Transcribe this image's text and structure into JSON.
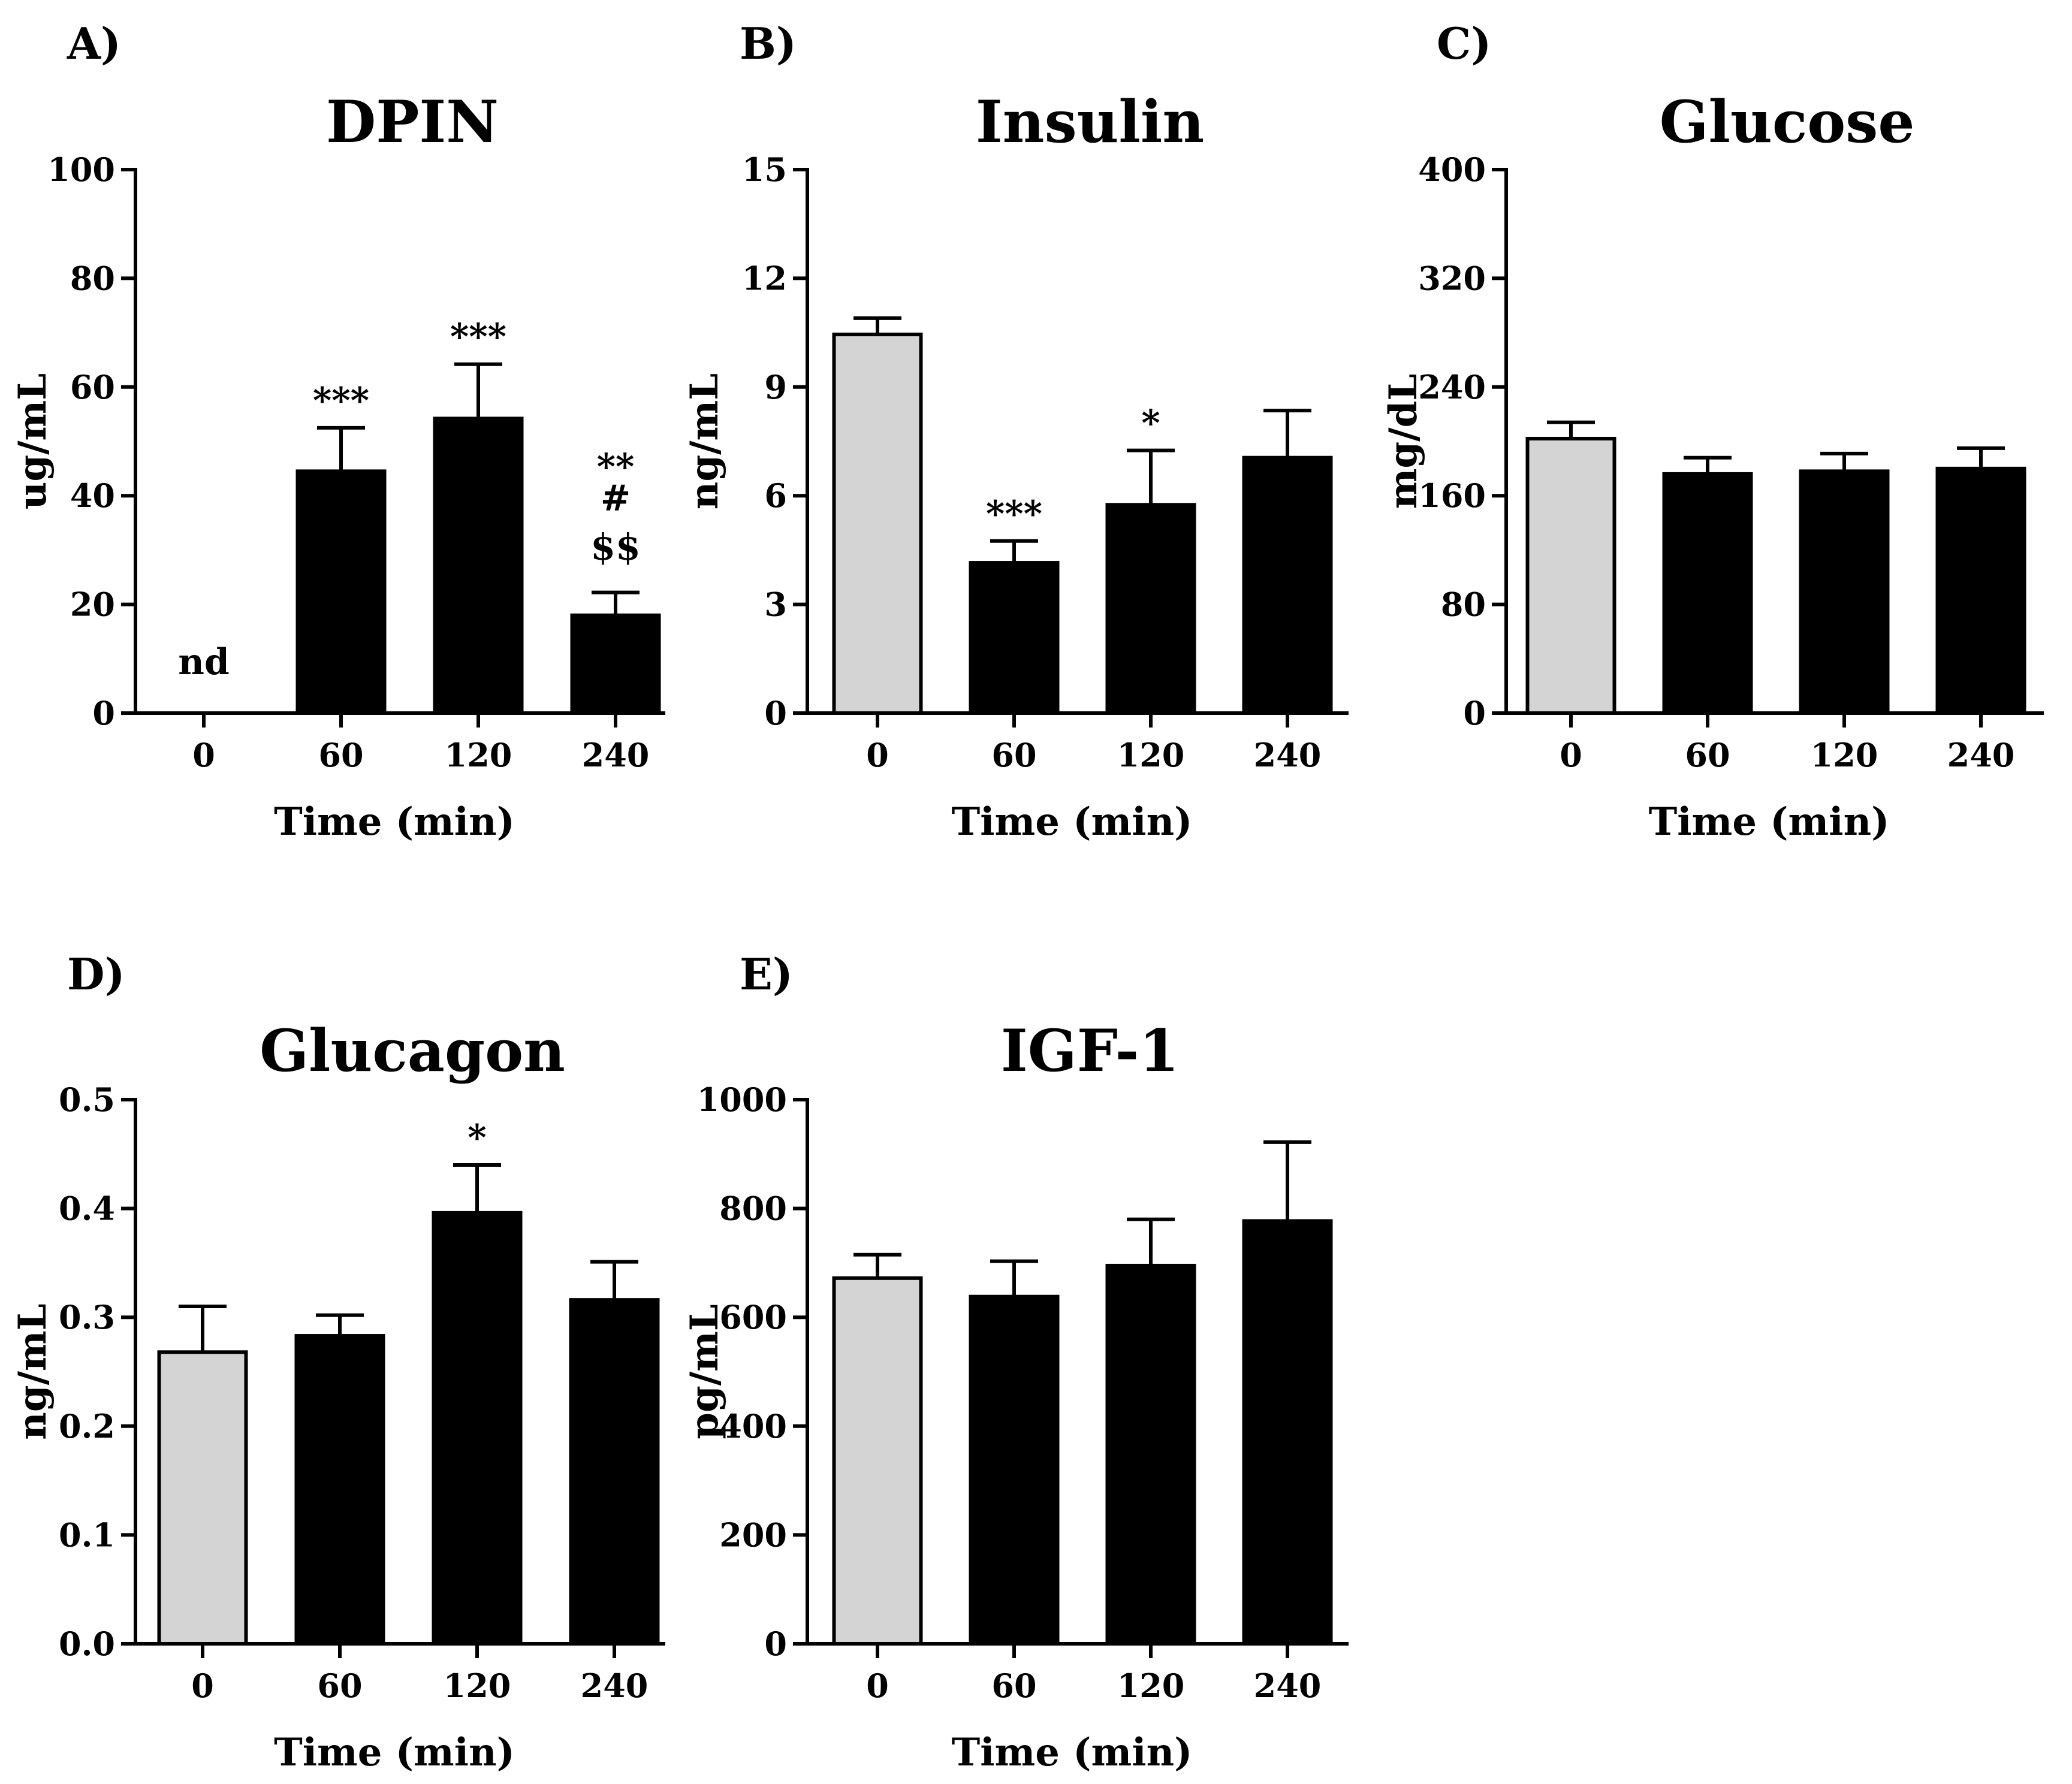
{
  "chart_data": [
    {
      "panel": "A)",
      "type": "bar",
      "title": "DPIN",
      "xlabel": "Time (min)",
      "ylabel": "ug/mL",
      "categories": [
        "0",
        "60",
        "120",
        "240"
      ],
      "values": [
        0,
        44.5,
        54.2,
        18.0
      ],
      "errors": [
        0,
        8.0,
        10.0,
        4.2
      ],
      "colors": [
        "#d4d4d4",
        "#000000",
        "#000000",
        "#000000"
      ],
      "ylim": [
        0,
        100
      ],
      "yticks": [
        0,
        20,
        40,
        60,
        80,
        100
      ],
      "ytick_labels": [
        "0",
        "20",
        "40",
        "60",
        "80",
        "100"
      ],
      "annotations": [
        {
          "category": 0,
          "lines": [
            "nd"
          ]
        },
        {
          "category": 1,
          "lines": [
            "***"
          ]
        },
        {
          "category": 2,
          "lines": [
            "***"
          ]
        },
        {
          "category": 3,
          "lines": [
            "**",
            "#",
            "$$"
          ]
        }
      ]
    },
    {
      "panel": "B)",
      "type": "bar",
      "title": "Insulin",
      "xlabel": "Time (min)",
      "ylabel": "ng/mL",
      "categories": [
        "0",
        "60",
        "120",
        "240"
      ],
      "values": [
        10.45,
        4.15,
        5.75,
        7.05
      ],
      "errors": [
        0.45,
        0.6,
        1.5,
        1.3
      ],
      "colors": [
        "#d4d4d4",
        "#000000",
        "#000000",
        "#000000"
      ],
      "ylim": [
        0,
        15
      ],
      "yticks": [
        0,
        3,
        6,
        9,
        12,
        15
      ],
      "ytick_labels": [
        "0",
        "3",
        "6",
        "9",
        "12",
        "15"
      ],
      "annotations": [
        {
          "category": 1,
          "lines": [
            "***"
          ]
        },
        {
          "category": 2,
          "lines": [
            "*"
          ]
        }
      ]
    },
    {
      "panel": "C)",
      "type": "bar",
      "title": "Glucose",
      "xlabel": "Time (min)",
      "ylabel": "mg/dL",
      "categories": [
        "0",
        "60",
        "120",
        "240"
      ],
      "values": [
        202,
        176,
        178,
        180
      ],
      "errors": [
        12,
        12,
        13,
        15
      ],
      "colors": [
        "#d4d4d4",
        "#000000",
        "#000000",
        "#000000"
      ],
      "ylim": [
        0,
        400
      ],
      "yticks": [
        0,
        80,
        160,
        240,
        320,
        400
      ],
      "ytick_labels": [
        "0",
        "80",
        "160",
        "240",
        "320",
        "400"
      ],
      "annotations": []
    },
    {
      "panel": "D)",
      "type": "bar",
      "title": "Glucagon",
      "xlabel": "Time (min)",
      "ylabel": "ng/mL",
      "categories": [
        "0",
        "60",
        "120",
        "240"
      ],
      "values": [
        0.268,
        0.283,
        0.396,
        0.316
      ],
      "errors": [
        0.042,
        0.019,
        0.044,
        0.035
      ],
      "colors": [
        "#d4d4d4",
        "#000000",
        "#000000",
        "#000000"
      ],
      "ylim": [
        0,
        0.5
      ],
      "yticks": [
        0,
        0.1,
        0.2,
        0.3,
        0.4,
        0.5
      ],
      "ytick_labels": [
        "0.0",
        "0.1",
        "0.2",
        "0.3",
        "0.4",
        "0.5"
      ],
      "annotations": [
        {
          "category": 2,
          "lines": [
            "*"
          ]
        }
      ]
    },
    {
      "panel": "E)",
      "type": "bar",
      "title": "IGF-1",
      "xlabel": "Time (min)",
      "ylabel": "pg/mL",
      "categories": [
        "0",
        "60",
        "120",
        "240"
      ],
      "values": [
        672,
        638,
        695,
        777
      ],
      "errors": [
        43,
        65,
        85,
        145
      ],
      "colors": [
        "#d4d4d4",
        "#000000",
        "#000000",
        "#000000"
      ],
      "ylim": [
        0,
        1000
      ],
      "yticks": [
        0,
        200,
        400,
        600,
        800,
        1000
      ],
      "ytick_labels": [
        "0",
        "200",
        "400",
        "600",
        "800",
        "1000"
      ],
      "annotations": []
    }
  ]
}
